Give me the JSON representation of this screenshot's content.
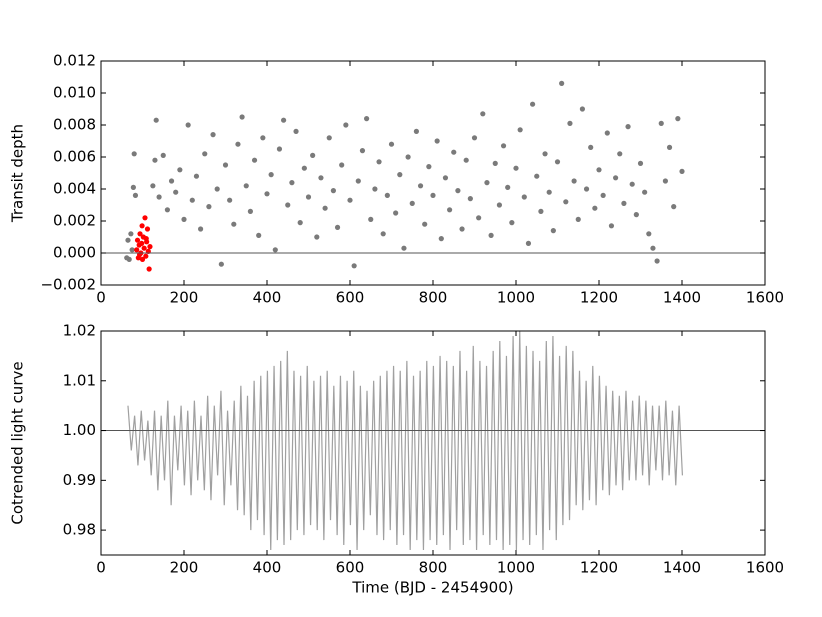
{
  "chart_data": [
    {
      "type": "scatter",
      "ylabel": "Transit depth",
      "xlim": [
        0,
        1600
      ],
      "xticks": [
        0,
        200,
        400,
        600,
        800,
        1000,
        1200,
        1400,
        1600
      ],
      "ylim": [
        -0.002,
        0.012
      ],
      "yticks": [
        {
          "value": -0.002,
          "label": "−0.002"
        },
        {
          "value": 0,
          "label": "0.000"
        },
        0.002,
        0.004,
        0.006,
        0.008,
        {
          "value": 0.01,
          "label": "0.010"
        },
        0.012
      ],
      "hline": 0,
      "series": [
        {
          "color": "#7a7a7a",
          "x": [
            62,
            65,
            68,
            72,
            75,
            78,
            80,
            83,
            125,
            130,
            133,
            140,
            150,
            160,
            170,
            180,
            190,
            200,
            210,
            220,
            230,
            240,
            250,
            260,
            270,
            280,
            290,
            300,
            310,
            320,
            330,
            340,
            350,
            360,
            370,
            380,
            390,
            400,
            410,
            420,
            430,
            440,
            450,
            460,
            470,
            480,
            490,
            500,
            510,
            520,
            530,
            540,
            550,
            560,
            570,
            580,
            590,
            600,
            610,
            620,
            630,
            640,
            650,
            660,
            670,
            680,
            690,
            700,
            710,
            720,
            730,
            740,
            750,
            760,
            770,
            780,
            790,
            800,
            810,
            820,
            830,
            840,
            850,
            860,
            870,
            880,
            890,
            900,
            910,
            920,
            930,
            940,
            950,
            960,
            970,
            980,
            990,
            1000,
            1010,
            1020,
            1030,
            1040,
            1050,
            1060,
            1070,
            1080,
            1090,
            1100,
            1110,
            1120,
            1130,
            1140,
            1150,
            1160,
            1170,
            1180,
            1190,
            1200,
            1210,
            1220,
            1230,
            1240,
            1250,
            1260,
            1270,
            1280,
            1290,
            1300,
            1310,
            1320,
            1330,
            1340,
            1350,
            1360,
            1370,
            1380,
            1390,
            1400
          ],
          "values": [
            -0.0003,
            0.0008,
            -0.0004,
            0.0012,
            0.0002,
            0.0041,
            0.0062,
            0.0036,
            0.0042,
            0.0058,
            0.0083,
            0.0035,
            0.0061,
            0.0027,
            0.0045,
            0.0038,
            0.0052,
            0.0021,
            0.008,
            0.0033,
            0.0048,
            0.0015,
            0.0062,
            0.0029,
            0.0074,
            0.004,
            -0.0007,
            0.0055,
            0.0033,
            0.0018,
            0.0068,
            0.0085,
            0.0042,
            0.0026,
            0.0058,
            0.0011,
            0.0072,
            0.0037,
            0.0049,
            0.0002,
            0.0065,
            0.0083,
            0.003,
            0.0044,
            0.0076,
            0.0019,
            0.0053,
            0.0035,
            0.0061,
            0.001,
            0.0047,
            0.0028,
            0.0072,
            0.0039,
            0.0016,
            0.0055,
            0.008,
            0.0033,
            -0.0008,
            0.0045,
            0.0064,
            0.0084,
            0.0021,
            0.004,
            0.0057,
            0.0012,
            0.0036,
            0.0068,
            0.0025,
            0.0049,
            0.0003,
            0.006,
            0.0031,
            0.0076,
            0.0042,
            0.0018,
            0.0054,
            0.0036,
            0.007,
            0.0009,
            0.0047,
            0.0027,
            0.0063,
            0.0039,
            0.0015,
            0.0058,
            0.0034,
            0.0072,
            0.0022,
            0.0087,
            0.0044,
            0.0011,
            0.0056,
            0.003,
            0.0067,
            0.0041,
            0.0019,
            0.0053,
            0.0077,
            0.0035,
            0.0006,
            0.0093,
            0.0048,
            0.0026,
            0.0062,
            0.0038,
            0.0014,
            0.0057,
            0.0106,
            0.0032,
            0.0081,
            0.0045,
            0.0021,
            0.009,
            0.004,
            0.0066,
            0.0028,
            0.0052,
            0.0036,
            0.0075,
            0.0017,
            0.0047,
            0.0062,
            0.0031,
            0.0079,
            0.0043,
            0.0024,
            0.0056,
            0.0038,
            0.0012,
            0.0003,
            -0.0005,
            0.0081,
            0.0045,
            0.0066,
            0.0029,
            0.0084,
            0.0051
          ]
        },
        {
          "color": "#ff0000",
          "x": [
            86,
            88,
            90,
            92,
            94,
            96,
            98,
            100,
            102,
            104,
            106,
            108,
            110,
            112,
            114,
            116,
            118,
            99,
            93,
            109
          ],
          "values": [
            0.0002,
            0.0008,
            -0.0003,
            0.0005,
            0.0012,
            0,
            0.0006,
            -0.0004,
            0.001,
            0.0003,
            0.0022,
            -0.0002,
            0.0007,
            0.0015,
            0.0001,
            -0.001,
            0.0004,
            0.0017,
            -0.0001,
            0.0009
          ]
        }
      ]
    },
    {
      "type": "line",
      "ylabel": "Cotrended light curve",
      "xlabel": "Time (BJD - 2454900)",
      "xlim": [
        0,
        1600
      ],
      "xticks": [
        0,
        200,
        400,
        600,
        800,
        1000,
        1200,
        1400,
        1600
      ],
      "ylim": [
        0.975,
        1.02
      ],
      "yticks": [
        0.98,
        0.99,
        {
          "value": 1,
          "label": "1.00"
        },
        1.01,
        1.02
      ],
      "hline": 1,
      "x": [
        65,
        73,
        81,
        89,
        97,
        105,
        113,
        121,
        129,
        137,
        145,
        153,
        161,
        169,
        177,
        185,
        193,
        201,
        209,
        217,
        225,
        233,
        241,
        249,
        257,
        265,
        273,
        281,
        289,
        297,
        305,
        313,
        321,
        329,
        337,
        345,
        353,
        361,
        369,
        377,
        385,
        393,
        401,
        409,
        417,
        425,
        433,
        441,
        449,
        457,
        465,
        473,
        481,
        489,
        497,
        505,
        513,
        521,
        529,
        537,
        545,
        553,
        561,
        569,
        577,
        585,
        593,
        601,
        609,
        617,
        625,
        633,
        641,
        649,
        657,
        665,
        673,
        681,
        689,
        697,
        705,
        713,
        721,
        729,
        737,
        745,
        753,
        761,
        769,
        777,
        785,
        793,
        801,
        809,
        817,
        825,
        833,
        841,
        849,
        857,
        865,
        873,
        881,
        889,
        897,
        905,
        913,
        921,
        929,
        937,
        945,
        953,
        961,
        969,
        977,
        985,
        993,
        1001,
        1009,
        1017,
        1025,
        1033,
        1041,
        1049,
        1057,
        1065,
        1073,
        1081,
        1089,
        1097,
        1105,
        1113,
        1121,
        1129,
        1137,
        1145,
        1153,
        1161,
        1169,
        1177,
        1185,
        1193,
        1201,
        1209,
        1217,
        1225,
        1233,
        1241,
        1249,
        1257,
        1265,
        1273,
        1281,
        1289,
        1297,
        1305,
        1313,
        1321,
        1329,
        1337,
        1345,
        1353,
        1361,
        1369,
        1377,
        1385,
        1393,
        1401
      ],
      "series": [
        {
          "color": "#a0a0a0",
          "values": [
            1.005,
            0.996,
            1.003,
            0.993,
            1.004,
            0.994,
            1.002,
            0.991,
            1.004,
            0.988,
            1.003,
            0.99,
            1.006,
            0.985,
            1.003,
            0.992,
            1.005,
            0.989,
            1.004,
            0.987,
            1.006,
            0.99,
            1.003,
            0.988,
            1.007,
            0.986,
            1.005,
            0.991,
            1.008,
            0.985,
            1.004,
            0.989,
            1.006,
            0.984,
            1.009,
            0.983,
            1.007,
            0.98,
            1.01,
            0.982,
            1.011,
            0.979,
            1.012,
            0.976,
            1.013,
            0.978,
            1.014,
            0.977,
            1.016,
            0.978,
            1.012,
            0.98,
            1.011,
            0.979,
            1.013,
            0.981,
            1.01,
            0.98,
            1.011,
            0.978,
            1.012,
            0.982,
            1.009,
            0.979,
            1.011,
            0.977,
            1.01,
            0.981,
            1.012,
            0.976,
            1.009,
            0.98,
            1.008,
            0.983,
            1.01,
            0.979,
            1.011,
            0.978,
            1.012,
            0.98,
            1.013,
            0.977,
            1.012,
            0.979,
            1.014,
            0.976,
            1.011,
            0.978,
            1.012,
            0.976,
            1.014,
            0.978,
            1.013,
            0.977,
            1.015,
            0.979,
            1.014,
            0.976,
            1.013,
            0.98,
            1.016,
            0.977,
            1.012,
            0.978,
            1.017,
            0.976,
            1.014,
            0.979,
            1.013,
            0.977,
            1.016,
            0.978,
            1.018,
            0.976,
            1.015,
            0.977,
            1.019,
            0.976,
            1.02,
            0.978,
            1.017,
            0.977,
            1.016,
            0.979,
            1.014,
            0.976,
            1.018,
            0.98,
            1.019,
            0.978,
            1.015,
            0.981,
            1.017,
            0.982,
            1.016,
            0.985,
            1.012,
            0.984,
            1.01,
            0.986,
            1.013,
            0.985,
            1.011,
            0.988,
            1.009,
            0.987,
            1.008,
            0.989,
            1.007,
            0.988,
            1.008,
            0.99,
            1.006,
            0.99,
            1.007,
            0.991,
            1.006,
            0.989,
            1.005,
            0.992,
            1.005,
            0.99,
            1.006,
            0.991,
            1.004,
            0.989,
            1.005,
            0.991
          ]
        }
      ]
    }
  ]
}
